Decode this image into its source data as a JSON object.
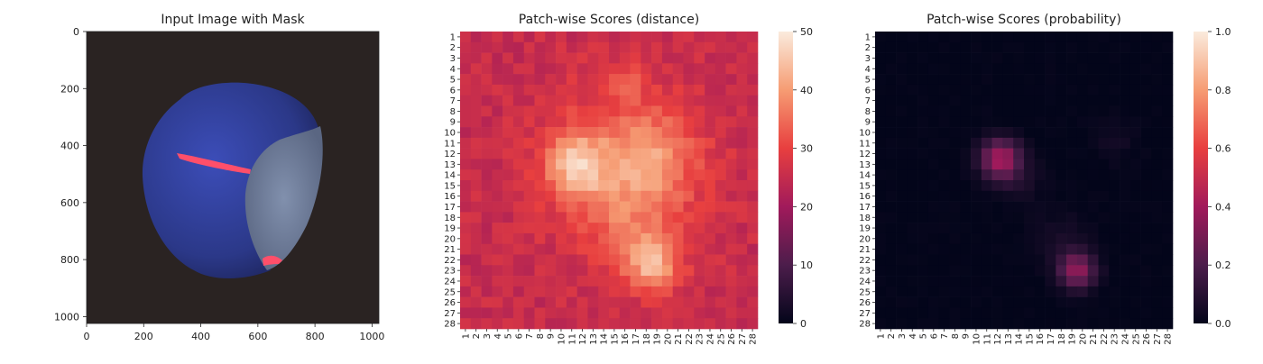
{
  "panels": [
    {
      "title": "Input Image with Mask",
      "x_ticks": [
        "0",
        "200",
        "400",
        "600",
        "800",
        "1000"
      ],
      "y_ticks": [
        "0",
        "200",
        "400",
        "600",
        "800",
        "1000"
      ]
    },
    {
      "title": "Patch-wise Scores (distance)",
      "colorbar_ticks": [
        "0",
        "10",
        "20",
        "30",
        "40",
        "50"
      ]
    },
    {
      "title": "Patch-wise Scores (probability)",
      "colorbar_ticks": [
        "0.0",
        "0.2",
        "0.4",
        "0.6",
        "0.8",
        "1.0"
      ]
    }
  ],
  "chart_data": [
    {
      "type": "image",
      "title": "Input Image with Mask",
      "xlim": [
        0,
        1024
      ],
      "ylim": [
        1024,
        0
      ],
      "x_ticks": [
        0,
        200,
        400,
        600,
        800,
        1000
      ],
      "y_ticks": [
        0,
        200,
        400,
        600,
        800,
        1000
      ],
      "colors": {
        "background": "#2a2322",
        "object": "#2d3a8c",
        "cut_face": "#6f7f9f",
        "mask": "#ff4f6a"
      }
    },
    {
      "type": "heatmap",
      "title": "Patch-wise Scores (distance)",
      "grid": [
        28,
        28
      ],
      "x_labels": [
        "1",
        "2",
        "3",
        "4",
        "5",
        "6",
        "7",
        "8",
        "9",
        "10",
        "11",
        "12",
        "13",
        "14",
        "15",
        "16",
        "17",
        "18",
        "19",
        "20",
        "21",
        "22",
        "23",
        "24",
        "25",
        "26",
        "27",
        "28"
      ],
      "y_labels": [
        "1",
        "2",
        "3",
        "4",
        "5",
        "6",
        "7",
        "8",
        "9",
        "10",
        "11",
        "12",
        "13",
        "14",
        "15",
        "16",
        "17",
        "18",
        "19",
        "20",
        "21",
        "22",
        "23",
        "24",
        "25",
        "26",
        "27",
        "28"
      ],
      "value_range": [
        0,
        50
      ],
      "colorbar_ticks": [
        0,
        10,
        20,
        30,
        40,
        50
      ],
      "baseline": 25,
      "hotspots": [
        {
          "row": 5.5,
          "col": 16,
          "sigma": 1.2,
          "amp": 5
        },
        {
          "row": 12.5,
          "col": 16,
          "sigma": 5.0,
          "amp": 9
        },
        {
          "row": 13,
          "col": 11.5,
          "sigma": 2.0,
          "amp": 16
        },
        {
          "row": 12,
          "col": 19,
          "sigma": 2.5,
          "amp": 7
        },
        {
          "row": 18,
          "col": 16.5,
          "sigma": 3.5,
          "amp": 7
        },
        {
          "row": 22.5,
          "col": 18.5,
          "sigma": 1.8,
          "amp": 15
        }
      ]
    },
    {
      "type": "heatmap",
      "title": "Patch-wise Scores (probability)",
      "grid": [
        28,
        28
      ],
      "x_labels": [
        "1",
        "2",
        "3",
        "4",
        "5",
        "6",
        "7",
        "8",
        "9",
        "10",
        "11",
        "12",
        "13",
        "14",
        "15",
        "16",
        "17",
        "18",
        "19",
        "20",
        "21",
        "22",
        "23",
        "24",
        "25",
        "26",
        "27",
        "28"
      ],
      "y_labels": [
        "1",
        "2",
        "3",
        "4",
        "5",
        "6",
        "7",
        "8",
        "9",
        "10",
        "11",
        "12",
        "13",
        "14",
        "15",
        "16",
        "17",
        "18",
        "19",
        "20",
        "21",
        "22",
        "23",
        "24",
        "25",
        "26",
        "27",
        "28"
      ],
      "value_range": [
        0,
        1
      ],
      "colorbar_ticks": [
        0.0,
        0.2,
        0.4,
        0.6,
        0.8,
        1.0
      ],
      "baseline": 0,
      "hotspots": [
        {
          "row": 12.5,
          "col": 12.3,
          "sigma": 1.3,
          "amp": 0.42
        },
        {
          "row": 14.5,
          "col": 14,
          "sigma": 1.5,
          "amp": 0.06
        },
        {
          "row": 23,
          "col": 19.5,
          "sigma": 1.2,
          "amp": 0.35
        },
        {
          "row": 20,
          "col": 18,
          "sigma": 2.0,
          "amp": 0.05
        },
        {
          "row": 10.5,
          "col": 23,
          "sigma": 1.5,
          "amp": 0.04
        }
      ]
    }
  ]
}
